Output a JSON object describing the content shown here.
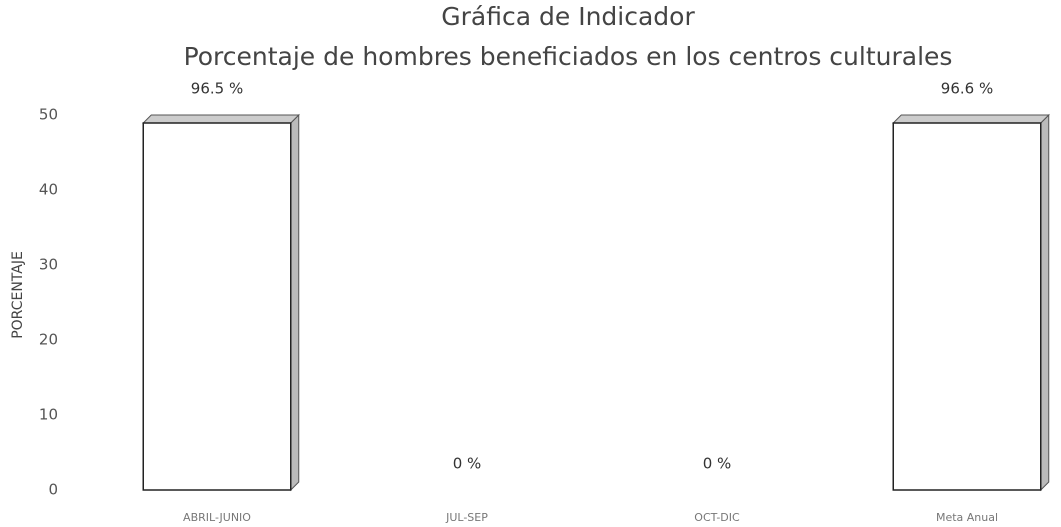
{
  "chart_data": {
    "type": "bar",
    "title": "Gráfica de Indicador",
    "subtitle": "Porcentaje de hombres beneficiados en los centros culturales",
    "y_label": "PORCENTAJE",
    "categories": [
      "ABRIL-JUNIO",
      "JUL-SEP",
      "OCT-DIC",
      "Meta Anual"
    ],
    "values": [
      96.5,
      0,
      0,
      96.6
    ],
    "value_labels": [
      "96.5 %",
      "0 %",
      "0 %",
      "96.6 %"
    ],
    "color": "#ffffff",
    "ylim": [
      0,
      50
    ],
    "yticks": [
      0,
      10,
      20,
      30,
      40,
      50
    ],
    "grid": false
  }
}
